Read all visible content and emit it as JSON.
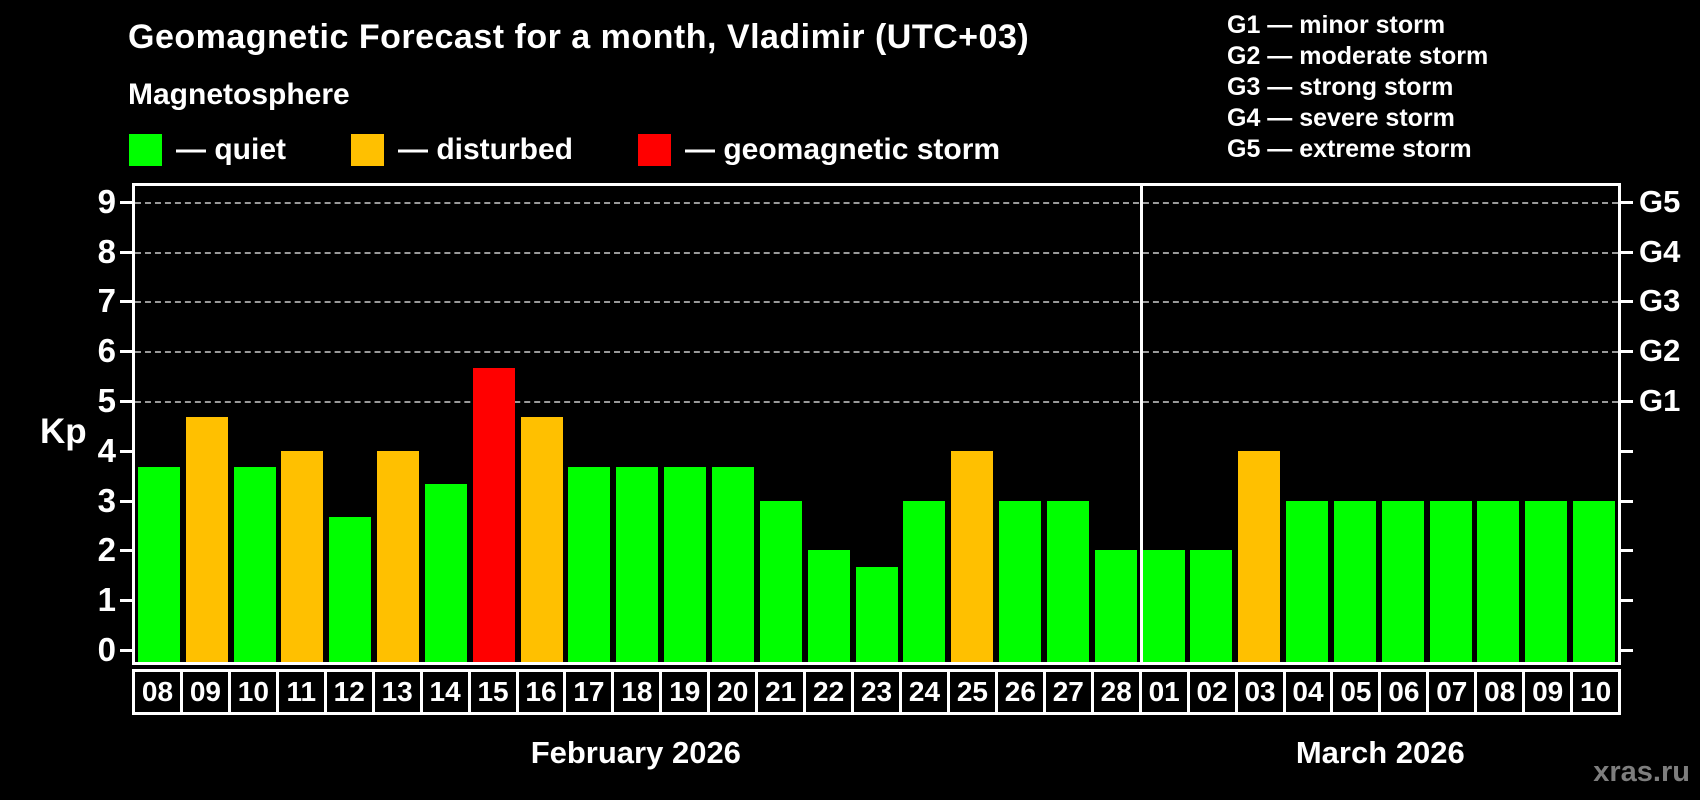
{
  "title": "Geomagnetic Forecast for a month, Vladimir (UTC+03)",
  "subtitle": "Magnetosphere",
  "watermark": "xras.ru",
  "colors": {
    "background": "#000000",
    "text": "#ffffff",
    "grid": "#9a9a9a",
    "watermark": "#7e7e7e"
  },
  "legend": {
    "items": [
      {
        "key": "quiet",
        "label": "— quiet",
        "color": "#00ff00"
      },
      {
        "key": "disturbed",
        "label": "— disturbed",
        "color": "#ffc000"
      },
      {
        "key": "storm",
        "label": "— geomagnetic storm",
        "color": "#ff0000"
      }
    ]
  },
  "storm_scale_legend": [
    "G1 — minor storm",
    "G2 — moderate storm",
    "G3 — strong storm",
    "G4 — severe storm",
    "G5 — extreme storm"
  ],
  "chart_data": {
    "type": "bar",
    "ylabel": "Kp",
    "ylim": [
      0,
      9.6
    ],
    "yticks": [
      0,
      1,
      2,
      3,
      4,
      5,
      6,
      7,
      8,
      9
    ],
    "gridlines_at": [
      5,
      6,
      7,
      8,
      9
    ],
    "grid": true,
    "legend_position": "top",
    "right_axis_labels": [
      {
        "label": "G1",
        "kp": 5
      },
      {
        "label": "G2",
        "kp": 6
      },
      {
        "label": "G3",
        "kp": 7
      },
      {
        "label": "G4",
        "kp": 8
      },
      {
        "label": "G5",
        "kp": 9
      }
    ],
    "status_colors": {
      "quiet": "#00ff00",
      "disturbed": "#ffc000",
      "storm": "#ff0000"
    },
    "months": [
      {
        "label": "February 2026",
        "bars": [
          {
            "day": "08",
            "kp": 3.67,
            "status": "quiet"
          },
          {
            "day": "09",
            "kp": 4.67,
            "status": "disturbed"
          },
          {
            "day": "10",
            "kp": 3.67,
            "status": "quiet"
          },
          {
            "day": "11",
            "kp": 4.0,
            "status": "disturbed"
          },
          {
            "day": "12",
            "kp": 2.67,
            "status": "quiet"
          },
          {
            "day": "13",
            "kp": 4.0,
            "status": "disturbed"
          },
          {
            "day": "14",
            "kp": 3.33,
            "status": "quiet"
          },
          {
            "day": "15",
            "kp": 5.67,
            "status": "storm"
          },
          {
            "day": "16",
            "kp": 4.67,
            "status": "disturbed"
          },
          {
            "day": "17",
            "kp": 3.67,
            "status": "quiet"
          },
          {
            "day": "18",
            "kp": 3.67,
            "status": "quiet"
          },
          {
            "day": "19",
            "kp": 3.67,
            "status": "quiet"
          },
          {
            "day": "20",
            "kp": 3.67,
            "status": "quiet"
          },
          {
            "day": "21",
            "kp": 3.0,
            "status": "quiet"
          },
          {
            "day": "22",
            "kp": 2.0,
            "status": "quiet"
          },
          {
            "day": "23",
            "kp": 1.67,
            "status": "quiet"
          },
          {
            "day": "24",
            "kp": 3.0,
            "status": "quiet"
          },
          {
            "day": "25",
            "kp": 4.0,
            "status": "disturbed"
          },
          {
            "day": "26",
            "kp": 3.0,
            "status": "quiet"
          },
          {
            "day": "27",
            "kp": 3.0,
            "status": "quiet"
          },
          {
            "day": "28",
            "kp": 2.0,
            "status": "quiet"
          }
        ]
      },
      {
        "label": "March 2026",
        "bars": [
          {
            "day": "01",
            "kp": 2.0,
            "status": "quiet"
          },
          {
            "day": "02",
            "kp": 2.0,
            "status": "quiet"
          },
          {
            "day": "03",
            "kp": 4.0,
            "status": "disturbed"
          },
          {
            "day": "04",
            "kp": 3.0,
            "status": "quiet"
          },
          {
            "day": "05",
            "kp": 3.0,
            "status": "quiet"
          },
          {
            "day": "06",
            "kp": 3.0,
            "status": "quiet"
          },
          {
            "day": "07",
            "kp": 3.0,
            "status": "quiet"
          },
          {
            "day": "08",
            "kp": 3.0,
            "status": "quiet"
          },
          {
            "day": "09",
            "kp": 3.0,
            "status": "quiet"
          },
          {
            "day": "10",
            "kp": 3.0,
            "status": "quiet"
          }
        ]
      }
    ]
  }
}
